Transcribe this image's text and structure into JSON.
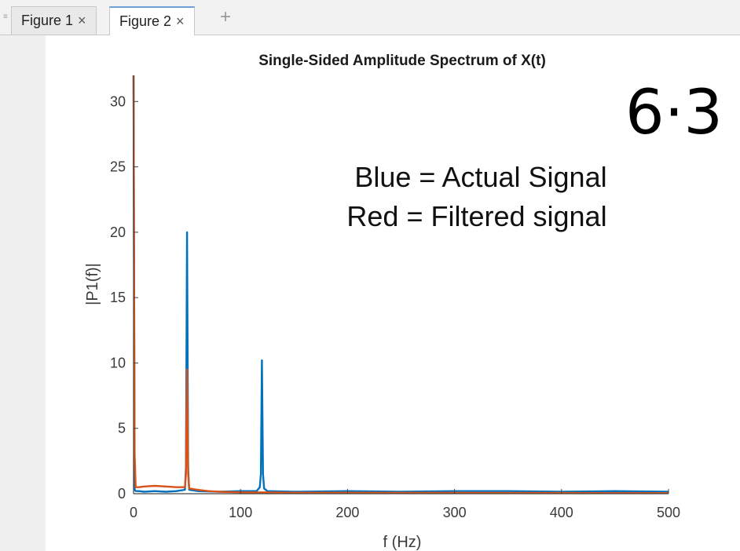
{
  "tabs": [
    {
      "label": "Figure 1",
      "close": "×",
      "active": false
    },
    {
      "label": "Figure 2",
      "close": "×",
      "active": true
    }
  ],
  "add_tab_glyph": "+",
  "annotations": {
    "line1": "Blue = Actual Signal",
    "line2": "Red = Filtered signal",
    "handwritten": "6·3"
  },
  "chart_data": {
    "type": "line",
    "title": "Single-Sided Amplitude Spectrum of X(t)",
    "xlabel": "f (Hz)",
    "ylabel": "|P1(f)|",
    "xlim": [
      0,
      500
    ],
    "ylim": [
      0,
      32
    ],
    "xticks": [
      0,
      100,
      200,
      300,
      400,
      500
    ],
    "yticks": [
      0,
      5,
      10,
      15,
      20,
      25,
      30
    ],
    "grid": false,
    "series": [
      {
        "color": "#0072BD",
        "x": [
          0,
          1,
          2,
          5,
          10,
          20,
          30,
          40,
          48,
          49,
          50,
          51,
          52,
          60,
          80,
          100,
          115,
          118,
          119,
          120,
          121,
          122,
          125,
          150,
          200,
          250,
          300,
          350,
          400,
          450,
          500
        ],
        "y": [
          32,
          0.3,
          0.2,
          0.2,
          0.15,
          0.2,
          0.15,
          0.2,
          0.3,
          2.0,
          20.0,
          2.0,
          0.3,
          0.2,
          0.15,
          0.2,
          0.2,
          0.5,
          1.5,
          10.2,
          1.5,
          0.4,
          0.2,
          0.15,
          0.2,
          0.15,
          0.2,
          0.2,
          0.15,
          0.2,
          0.15
        ]
      },
      {
        "color": "#D95319",
        "x": [
          0,
          1,
          2,
          5,
          10,
          20,
          30,
          40,
          48,
          49,
          50,
          51,
          52,
          60,
          70,
          80,
          100,
          120,
          150,
          200,
          250,
          300,
          350,
          400,
          450,
          500
        ],
        "y": [
          32,
          3.0,
          0.5,
          0.5,
          0.55,
          0.6,
          0.55,
          0.5,
          0.5,
          1.5,
          9.5,
          1.5,
          0.4,
          0.3,
          0.2,
          0.15,
          0.1,
          0.1,
          0.08,
          0.08,
          0.07,
          0.07,
          0.06,
          0.06,
          0.05,
          0.05
        ]
      }
    ]
  }
}
